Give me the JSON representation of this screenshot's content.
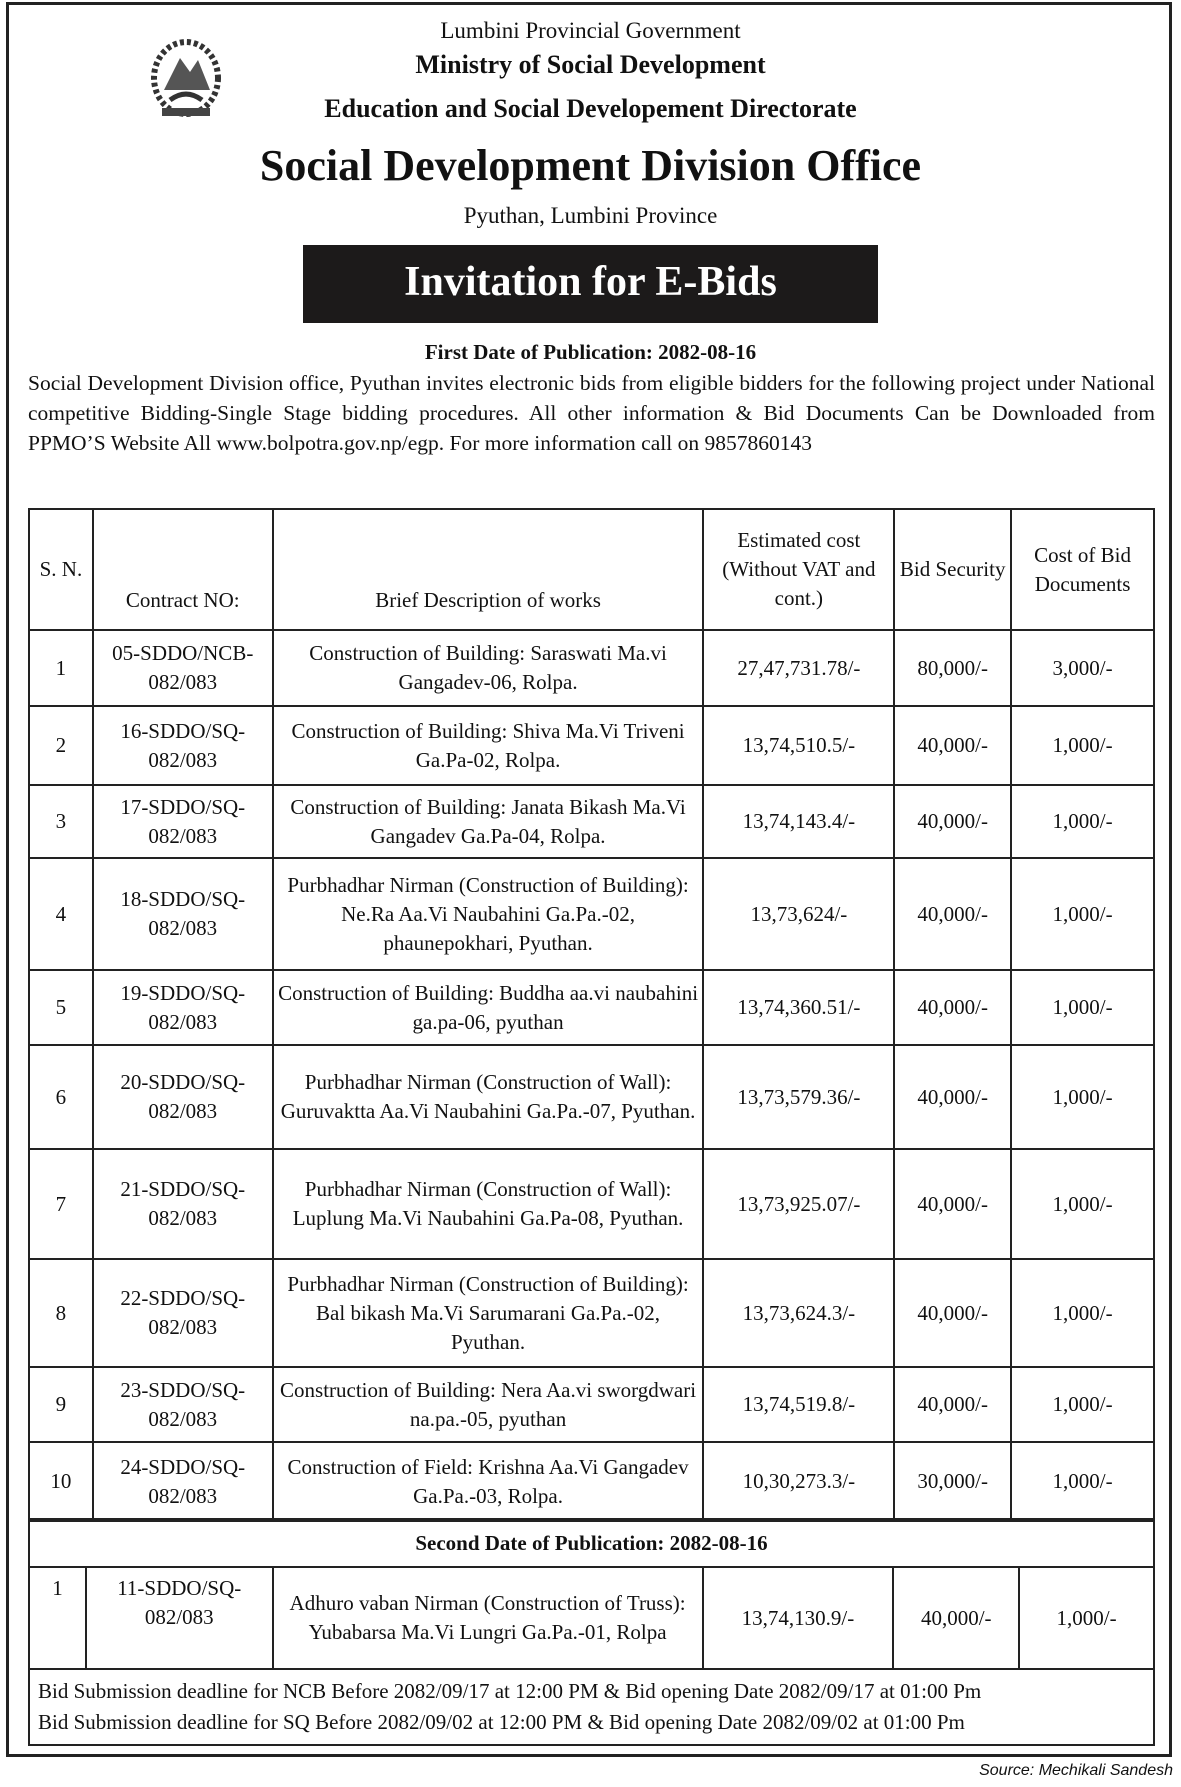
{
  "header": {
    "government": "Lumbini Provincial Government",
    "ministry": "Ministry of Social Development",
    "directorate": "Education and Social Developement Directorate",
    "office": "Social Development Division Office",
    "location": "Pyuthan, Lumbini Province",
    "banner": "Invitation for E-Bids"
  },
  "first_publication": "First Date of Publication: 2082-08-16",
  "intro": "Social Development Division office, Pyuthan invites electronic bids from eligible bidders for the following project under National competitive Bidding-Single Stage bidding procedures. All other information & Bid Documents Can be Downloaded from PPMO’S Website All www.bolpotra.gov.np/egp. For more information call on 9857860143",
  "table": {
    "headers": [
      "S. N.",
      "Contract NO:",
      "Brief  Description of works",
      "Estimated cost (Without VAT and cont.)",
      "Bid Security",
      "Cost of Bid Documents"
    ],
    "rows": [
      {
        "sn": "1",
        "contract": "05-SDDO/NCB-082/083",
        "desc": "Construction of Building: Saraswati Ma.vi Gangadev-06, Rolpa.",
        "cost": "27,47,731.78/-",
        "security": "80,000/-",
        "doc": "3,000/-"
      },
      {
        "sn": "2",
        "contract": "16-SDDO/SQ-082/083",
        "desc": "Construction of Building: Shiva Ma.Vi Triveni Ga.Pa-02, Rolpa.",
        "cost": "13,74,510.5/-",
        "security": "40,000/-",
        "doc": "1,000/-"
      },
      {
        "sn": "3",
        "contract": "17-SDDO/SQ-082/083",
        "desc": "Construction of Building: Janata Bikash Ma.Vi Gangadev Ga.Pa-04, Rolpa.",
        "cost": "13,74,143.4/-",
        "security": "40,000/-",
        "doc": "1,000/-"
      },
      {
        "sn": "4",
        "contract": "18-SDDO/SQ-082/083",
        "desc": "Purbhadhar Nirman (Construction of Building): Ne.Ra Aa.Vi Naubahini Ga.Pa.-02, phaunepokhari, Pyuthan.",
        "cost": "13,73,624/-",
        "security": "40,000/-",
        "doc": "1,000/-"
      },
      {
        "sn": "5",
        "contract": "19-SDDO/SQ-082/083",
        "desc": "Construction of Building: Buddha aa.vi naubahini ga.pa-06, pyuthan",
        "cost": "13,74,360.51/-",
        "security": "40,000/-",
        "doc": "1,000/-"
      },
      {
        "sn": "6",
        "contract": "20-SDDO/SQ-082/083",
        "desc": "Purbhadhar Nirman (Construction of Wall): Guruvaktta Aa.Vi Naubahini Ga.Pa.-07, Pyuthan.",
        "cost": "13,73,579.36/-",
        "security": "40,000/-",
        "doc": "1,000/-"
      },
      {
        "sn": "7",
        "contract": "21-SDDO/SQ-082/083",
        "desc": "Purbhadhar Nirman (Construction of Wall): Luplung Ma.Vi Naubahini Ga.Pa-08, Pyuthan.",
        "cost": "13,73,925.07/-",
        "security": "40,000/-",
        "doc": "1,000/-"
      },
      {
        "sn": "8",
        "contract": "22-SDDO/SQ-082/083",
        "desc": "Purbhadhar Nirman (Construction of Building): Bal bikash Ma.Vi Sarumarani Ga.Pa.-02, Pyuthan.",
        "cost": "13,73,624.3/-",
        "security": "40,000/-",
        "doc": "1,000/-"
      },
      {
        "sn": "9",
        "contract": "23-SDDO/SQ-082/083",
        "desc": "Construction of Building: Nera Aa.vi sworgdwari na.pa.-05, pyuthan",
        "cost": "13,74,519.8/-",
        "security": "40,000/-",
        "doc": "1,000/-"
      },
      {
        "sn": "10",
        "contract": "24-SDDO/SQ-082/083",
        "desc": "Construction of Field: Krishna Aa.Vi Gangadev Ga.Pa.-03, Rolpa.",
        "cost": "10,30,273.3/-",
        "security": "30,000/-",
        "doc": "1,000/-"
      }
    ]
  },
  "second": {
    "title": "Second Date of Publication: 2082-08-16",
    "row": {
      "sn": "1",
      "contract": "11-SDDO/SQ-082/083",
      "desc": "Adhuro vaban Nirman (Construction of Truss): Yubabarsa Ma.Vi Lungri Ga.Pa.-01, Rolpa",
      "cost": "13,74,130.9/-",
      "security": "40,000/-",
      "doc": "1,000/-"
    },
    "deadline_ncb": "Bid Submission deadline for NCB Before 2082/09/17 at 12:00 PM & Bid  opening Date 2082/09/17 at 01:00 Pm",
    "deadline_sq": "Bid Submission deadline for SQ Before 2082/09/02 at 12:00 PM & Bid opening Date 2082/09/02 at 01:00 Pm"
  },
  "source": "Source: Mechikali Sandesh"
}
